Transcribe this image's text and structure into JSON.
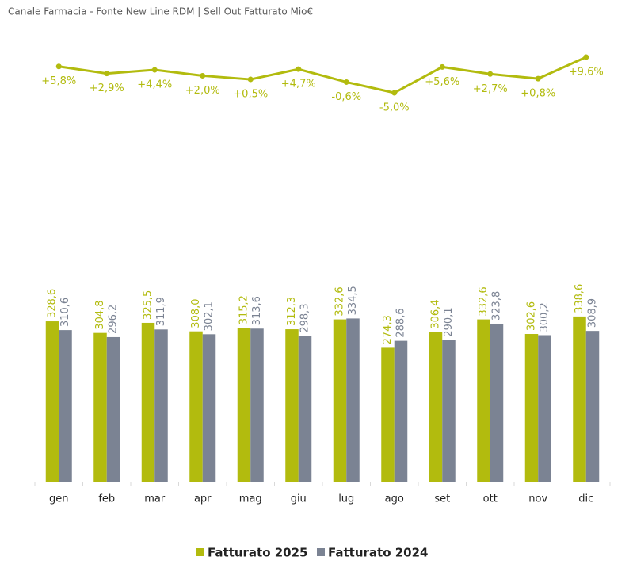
{
  "chart_data": {
    "type": "bar",
    "title": "Canale Farmacia - Fonte New Line RDM | Sell Out Fatturato Mio€",
    "categories": [
      "gen",
      "feb",
      "mar",
      "apr",
      "mag",
      "giu",
      "lug",
      "ago",
      "set",
      "ott",
      "nov",
      "dic"
    ],
    "ylim": [
      0,
      890
    ],
    "y2lim": [
      -164,
      13.5
    ],
    "series": [
      {
        "name": "Fatturato 2025",
        "color": "#b2bb0e",
        "values": [
          328.6,
          304.8,
          325.5,
          308.0,
          315.2,
          312.3,
          332.6,
          274.3,
          306.4,
          332.6,
          302.6,
          338.6
        ],
        "value_labels": [
          "328,6",
          "304,8",
          "325,5",
          "308,0",
          "315,2",
          "312,3",
          "332,6",
          "274,3",
          "306,4",
          "332,6",
          "302,6",
          "338,6"
        ]
      },
      {
        "name": "Fatturato 2024",
        "color": "#7b8393",
        "values": [
          310.6,
          296.2,
          311.9,
          302.1,
          313.6,
          298.3,
          334.5,
          288.6,
          290.1,
          323.8,
          300.2,
          308.9
        ],
        "value_labels": [
          "310,6",
          "296,2",
          "311,9",
          "302,1",
          "313,6",
          "298,3",
          "334,5",
          "288,6",
          "290,1",
          "323,8",
          "300,2",
          "308,9"
        ]
      },
      {
        "type": "line",
        "axis": "y2",
        "color": "#b2bb0e",
        "values": [
          5.8,
          2.9,
          4.4,
          2.0,
          0.5,
          4.7,
          -0.6,
          -5.0,
          5.6,
          2.7,
          0.8,
          9.6
        ],
        "value_labels": [
          "+5,8%",
          "+2,9%",
          "+4,4%",
          "+2,0%",
          "+0,5%",
          "+4,7%",
          "-0,6%",
          "-5,0%",
          "+5,6%",
          "+2,7%",
          "+0,8%",
          "+9,6%"
        ]
      }
    ]
  }
}
